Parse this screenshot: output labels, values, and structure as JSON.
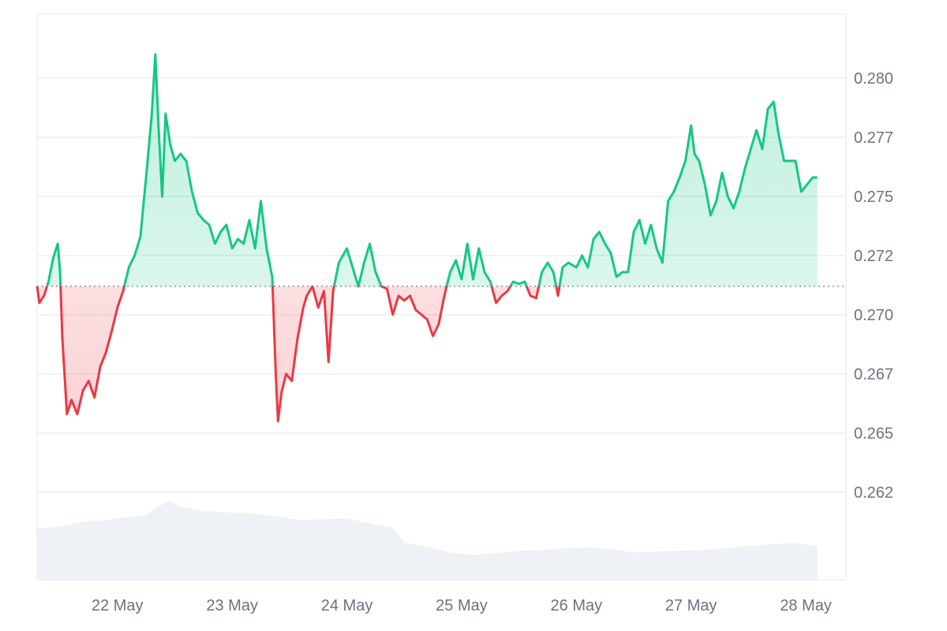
{
  "chart_data": {
    "type": "area",
    "baseline": 0.2712,
    "y_ticks": [
      "0.280",
      "0.277",
      "0.275",
      "0.272",
      "0.270",
      "0.267",
      "0.265",
      "0.262"
    ],
    "y_tick_values": [
      0.28,
      0.2775,
      0.275,
      0.2725,
      0.27,
      0.2675,
      0.265,
      0.2625
    ],
    "ylim": [
      0.2588,
      0.2827
    ],
    "x_ticks": [
      "22 May",
      "23 May",
      "24 May",
      "25 May",
      "26 May",
      "27 May",
      "28 May"
    ],
    "x_tick_values": [
      1,
      2,
      3,
      4,
      5,
      6,
      7
    ],
    "xlim": [
      0.3,
      7.35
    ],
    "grid": true,
    "colors": {
      "up": "#16c784",
      "down": "#ea3943",
      "volume": "#eef1f5",
      "grid": "#eceef2"
    },
    "series": [
      {
        "values": [
          [
            0.3,
            0.2712
          ],
          [
            0.32,
            0.2705
          ],
          [
            0.36,
            0.2708
          ],
          [
            0.4,
            0.2714
          ],
          [
            0.44,
            0.2724
          ],
          [
            0.48,
            0.273
          ],
          [
            0.5,
            0.2718
          ],
          [
            0.52,
            0.269
          ],
          [
            0.56,
            0.2658
          ],
          [
            0.6,
            0.2664
          ],
          [
            0.65,
            0.2658
          ],
          [
            0.7,
            0.2668
          ],
          [
            0.75,
            0.2672
          ],
          [
            0.8,
            0.2665
          ],
          [
            0.85,
            0.2678
          ],
          [
            0.9,
            0.2684
          ],
          [
            0.95,
            0.2693
          ],
          [
            1.0,
            0.2703
          ],
          [
            1.05,
            0.271
          ],
          [
            1.1,
            0.272
          ],
          [
            1.15,
            0.2725
          ],
          [
            1.2,
            0.2733
          ],
          [
            1.25,
            0.2758
          ],
          [
            1.3,
            0.2785
          ],
          [
            1.33,
            0.281
          ],
          [
            1.36,
            0.2778
          ],
          [
            1.39,
            0.275
          ],
          [
            1.42,
            0.2785
          ],
          [
            1.46,
            0.2772
          ],
          [
            1.5,
            0.2765
          ],
          [
            1.55,
            0.2768
          ],
          [
            1.6,
            0.2765
          ],
          [
            1.65,
            0.2752
          ],
          [
            1.7,
            0.2743
          ],
          [
            1.75,
            0.274
          ],
          [
            1.8,
            0.2738
          ],
          [
            1.85,
            0.273
          ],
          [
            1.9,
            0.2735
          ],
          [
            1.95,
            0.2738
          ],
          [
            2.0,
            0.2728
          ],
          [
            2.05,
            0.2732
          ],
          [
            2.1,
            0.273
          ],
          [
            2.15,
            0.274
          ],
          [
            2.2,
            0.2728
          ],
          [
            2.25,
            0.2748
          ],
          [
            2.3,
            0.2728
          ],
          [
            2.35,
            0.2716
          ],
          [
            2.38,
            0.2675
          ],
          [
            2.4,
            0.2655
          ],
          [
            2.43,
            0.2667
          ],
          [
            2.47,
            0.2675
          ],
          [
            2.52,
            0.2672
          ],
          [
            2.57,
            0.269
          ],
          [
            2.62,
            0.2703
          ],
          [
            2.65,
            0.2708
          ],
          [
            2.7,
            0.2712
          ],
          [
            2.75,
            0.2703
          ],
          [
            2.8,
            0.271
          ],
          [
            2.84,
            0.268
          ],
          [
            2.88,
            0.271
          ],
          [
            2.93,
            0.2722
          ],
          [
            3.0,
            0.2728
          ],
          [
            3.05,
            0.272
          ],
          [
            3.1,
            0.2712
          ],
          [
            3.15,
            0.2722
          ],
          [
            3.2,
            0.273
          ],
          [
            3.25,
            0.2718
          ],
          [
            3.3,
            0.2712
          ],
          [
            3.35,
            0.2711
          ],
          [
            3.4,
            0.27
          ],
          [
            3.45,
            0.2708
          ],
          [
            3.5,
            0.2706
          ],
          [
            3.55,
            0.2708
          ],
          [
            3.6,
            0.2702
          ],
          [
            3.65,
            0.27
          ],
          [
            3.7,
            0.2698
          ],
          [
            3.75,
            0.2691
          ],
          [
            3.8,
            0.2696
          ],
          [
            3.85,
            0.2708
          ],
          [
            3.9,
            0.2718
          ],
          [
            3.95,
            0.2723
          ],
          [
            4.0,
            0.2715
          ],
          [
            4.05,
            0.273
          ],
          [
            4.1,
            0.2715
          ],
          [
            4.15,
            0.2728
          ],
          [
            4.2,
            0.2718
          ],
          [
            4.25,
            0.2714
          ],
          [
            4.3,
            0.2705
          ],
          [
            4.35,
            0.2708
          ],
          [
            4.4,
            0.271
          ],
          [
            4.45,
            0.2714
          ],
          [
            4.5,
            0.2713
          ],
          [
            4.55,
            0.2714
          ],
          [
            4.6,
            0.2708
          ],
          [
            4.65,
            0.2707
          ],
          [
            4.7,
            0.2718
          ],
          [
            4.75,
            0.2722
          ],
          [
            4.8,
            0.2718
          ],
          [
            4.84,
            0.2708
          ],
          [
            4.88,
            0.272
          ],
          [
            4.93,
            0.2722
          ],
          [
            5.0,
            0.272
          ],
          [
            5.05,
            0.2725
          ],
          [
            5.1,
            0.272
          ],
          [
            5.15,
            0.2732
          ],
          [
            5.2,
            0.2735
          ],
          [
            5.25,
            0.273
          ],
          [
            5.3,
            0.2726
          ],
          [
            5.35,
            0.2716
          ],
          [
            5.4,
            0.2718
          ],
          [
            5.45,
            0.2718
          ],
          [
            5.5,
            0.2735
          ],
          [
            5.55,
            0.274
          ],
          [
            5.6,
            0.273
          ],
          [
            5.65,
            0.2738
          ],
          [
            5.7,
            0.2728
          ],
          [
            5.75,
            0.2722
          ],
          [
            5.8,
            0.2748
          ],
          [
            5.85,
            0.2752
          ],
          [
            5.9,
            0.2758
          ],
          [
            5.95,
            0.2765
          ],
          [
            6.0,
            0.278
          ],
          [
            6.03,
            0.2768
          ],
          [
            6.07,
            0.2765
          ],
          [
            6.12,
            0.2755
          ],
          [
            6.17,
            0.2742
          ],
          [
            6.22,
            0.2748
          ],
          [
            6.27,
            0.276
          ],
          [
            6.32,
            0.275
          ],
          [
            6.37,
            0.2745
          ],
          [
            6.42,
            0.2752
          ],
          [
            6.47,
            0.2762
          ],
          [
            6.52,
            0.277
          ],
          [
            6.57,
            0.2778
          ],
          [
            6.62,
            0.277
          ],
          [
            6.67,
            0.2787
          ],
          [
            6.72,
            0.279
          ],
          [
            6.76,
            0.2777
          ],
          [
            6.81,
            0.2765
          ],
          [
            6.86,
            0.2765
          ],
          [
            6.91,
            0.2765
          ],
          [
            6.96,
            0.2752
          ],
          [
            7.01,
            0.2755
          ],
          [
            7.06,
            0.2758
          ],
          [
            7.1,
            0.2758
          ]
        ]
      }
    ],
    "volume": [
      [
        0.3,
        0.62
      ],
      [
        0.5,
        0.64
      ],
      [
        0.7,
        0.7
      ],
      [
        0.9,
        0.72
      ],
      [
        1.1,
        0.76
      ],
      [
        1.25,
        0.78
      ],
      [
        1.35,
        0.88
      ],
      [
        1.45,
        0.95
      ],
      [
        1.55,
        0.88
      ],
      [
        1.75,
        0.83
      ],
      [
        2.0,
        0.81
      ],
      [
        2.2,
        0.8
      ],
      [
        2.4,
        0.76
      ],
      [
        2.6,
        0.72
      ],
      [
        2.8,
        0.73
      ],
      [
        3.0,
        0.74
      ],
      [
        3.2,
        0.68
      ],
      [
        3.4,
        0.63
      ],
      [
        3.5,
        0.45
      ],
      [
        3.7,
        0.4
      ],
      [
        3.9,
        0.33
      ],
      [
        4.1,
        0.3
      ],
      [
        4.3,
        0.32
      ],
      [
        4.5,
        0.35
      ],
      [
        4.7,
        0.36
      ],
      [
        4.9,
        0.38
      ],
      [
        5.1,
        0.39
      ],
      [
        5.3,
        0.37
      ],
      [
        5.5,
        0.33
      ],
      [
        5.7,
        0.34
      ],
      [
        5.9,
        0.35
      ],
      [
        6.1,
        0.36
      ],
      [
        6.3,
        0.38
      ],
      [
        6.5,
        0.41
      ],
      [
        6.7,
        0.43
      ],
      [
        6.9,
        0.44
      ],
      [
        7.1,
        0.41
      ]
    ]
  }
}
